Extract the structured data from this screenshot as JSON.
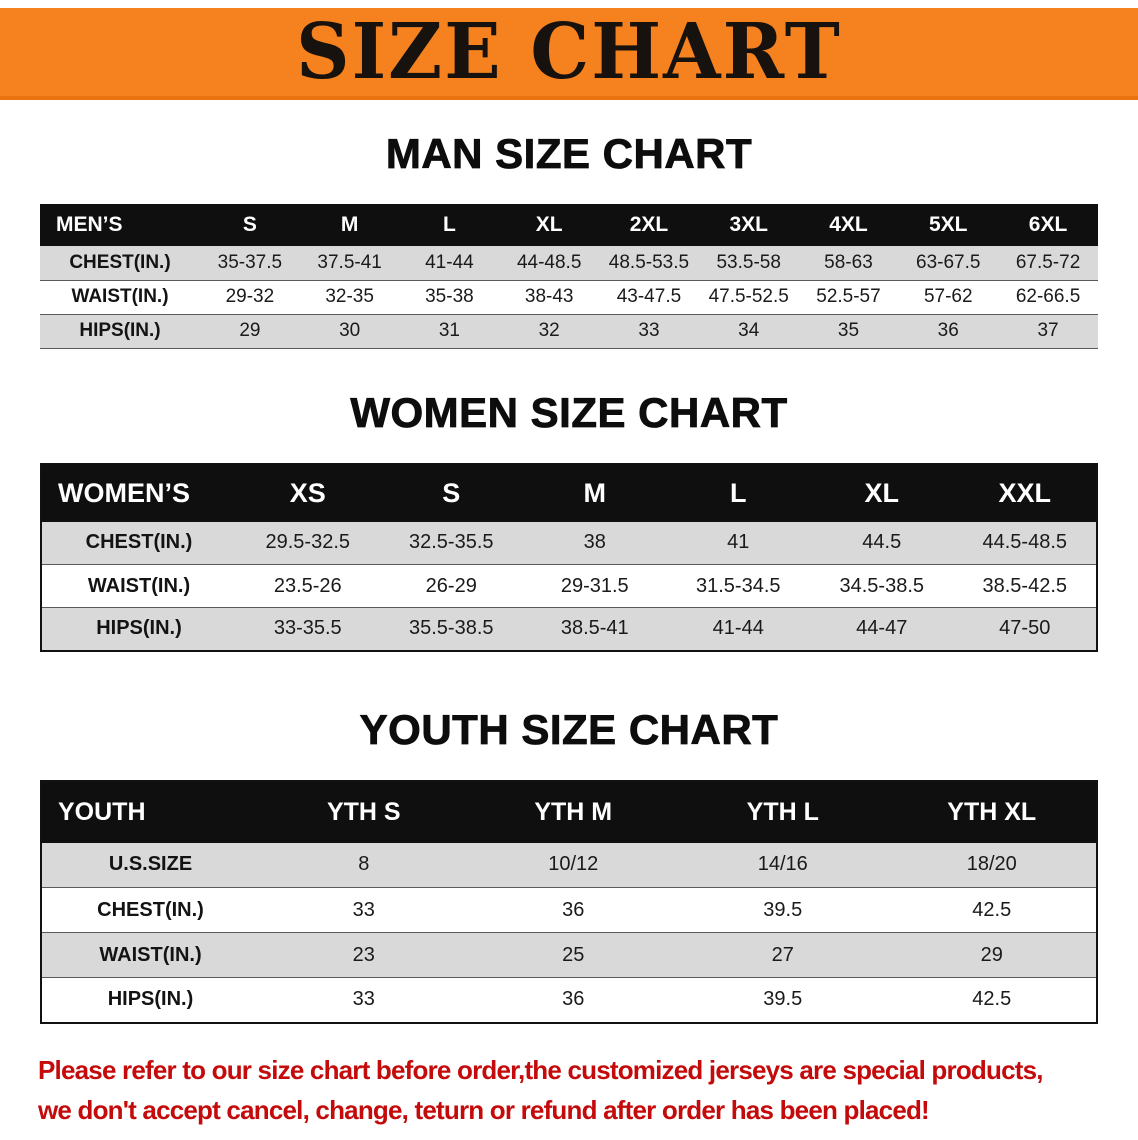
{
  "banner": {
    "title": "SIZE CHART",
    "background_color": "#F5821F"
  },
  "sections": [
    {
      "id": "men",
      "title": "MAN SIZE CHART",
      "table": {
        "corner": "MEN’S",
        "columns": [
          "S",
          "M",
          "L",
          "XL",
          "2XL",
          "3XL",
          "4XL",
          "5XL",
          "6XL"
        ],
        "rows": [
          {
            "label": "CHEST(IN.)",
            "values": [
              "35-37.5",
              "37.5-41",
              "41-44",
              "44-48.5",
              "48.5-53.5",
              "53.5-58",
              "58-63",
              "63-67.5",
              "67.5-72"
            ]
          },
          {
            "label": "WAIST(IN.)",
            "values": [
              "29-32",
              "32-35",
              "35-38",
              "38-43",
              "43-47.5",
              "47.5-52.5",
              "52.5-57",
              "57-62",
              "62-66.5"
            ]
          },
          {
            "label": "HIPS(IN.)",
            "values": [
              "29",
              "30",
              "31",
              "32",
              "33",
              "34",
              "35",
              "36",
              "37"
            ]
          }
        ]
      }
    },
    {
      "id": "women",
      "title": "WOMEN SIZE CHART",
      "table": {
        "corner": "WOMEN’S",
        "columns": [
          "XS",
          "S",
          "M",
          "L",
          "XL",
          "XXL"
        ],
        "rows": [
          {
            "label": "CHEST(IN.)",
            "values": [
              "29.5-32.5",
              "32.5-35.5",
              "38",
              "41",
              "44.5",
              "44.5-48.5"
            ]
          },
          {
            "label": "WAIST(IN.)",
            "values": [
              "23.5-26",
              "26-29",
              "29-31.5",
              "31.5-34.5",
              "34.5-38.5",
              "38.5-42.5"
            ]
          },
          {
            "label": "HIPS(IN.)",
            "values": [
              "33-35.5",
              "35.5-38.5",
              "38.5-41",
              "41-44",
              "44-47",
              "47-50"
            ]
          }
        ]
      }
    },
    {
      "id": "youth",
      "title": "YOUTH SIZE CHART",
      "table": {
        "corner": "YOUTH",
        "columns": [
          "YTH S",
          "YTH M",
          "YTH L",
          "YTH XL"
        ],
        "rows": [
          {
            "label": "U.S.SIZE",
            "values": [
              "8",
              "10/12",
              "14/16",
              "18/20"
            ]
          },
          {
            "label": "CHEST(IN.)",
            "values": [
              "33",
              "36",
              "39.5",
              "42.5"
            ]
          },
          {
            "label": "WAIST(IN.)",
            "values": [
              "23",
              "25",
              "27",
              "29"
            ]
          },
          {
            "label": "HIPS(IN.)",
            "values": [
              "33",
              "36",
              "39.5",
              "42.5"
            ]
          }
        ]
      }
    }
  ],
  "table_colors": {
    "header_background": "#0F0F0F",
    "header_text": "#FFFFFF",
    "stripe_background": "#D9D9D9"
  },
  "disclaimer": {
    "text_color": "#C40A0A",
    "lines": [
      "Please refer to our size chart before order,the customized jerseys are special products,",
      "we don't accept cancel, change, teturn or refund after order has been placed!"
    ]
  }
}
